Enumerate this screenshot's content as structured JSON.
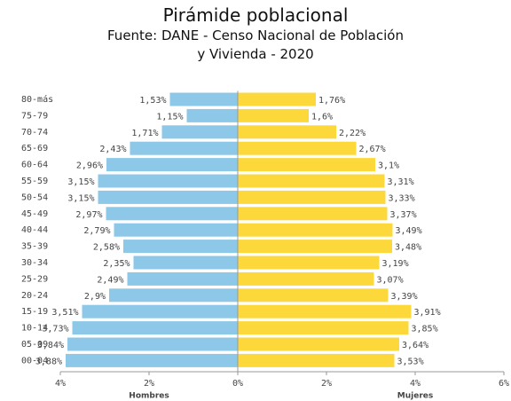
{
  "chart_data": {
    "type": "population-pyramid",
    "title": "Pirámide poblacional",
    "subtitle": "Fuente: DANE - Censo Nacional de Población y Vivienda - 2020",
    "categories": [
      "80-más",
      "75-79",
      "70-74",
      "65-69",
      "60-64",
      "55-59",
      "50-54",
      "45-49",
      "40-44",
      "35-39",
      "30-34",
      "25-29",
      "20-24",
      "15-19",
      "10-14",
      "05-09",
      "00-04"
    ],
    "series": [
      {
        "name": "Hombres",
        "color": "#8dc8e8",
        "values": [
          1.53,
          1.15,
          1.71,
          2.43,
          2.96,
          3.15,
          3.15,
          2.97,
          2.79,
          2.58,
          2.35,
          2.49,
          2.9,
          3.51,
          3.73,
          3.84,
          3.88
        ],
        "value_labels": [
          "1,53%",
          "1,15%",
          "1,71%",
          "2,43%",
          "2,96%",
          "3,15%",
          "3,15%",
          "2,97%",
          "2,79%",
          "2,58%",
          "2,35%",
          "2,49%",
          "2,9%",
          "3,51%",
          "3,73%",
          "3,84%",
          "3,88%"
        ]
      },
      {
        "name": "Mujeres",
        "color": "#fdd83a",
        "values": [
          1.76,
          1.6,
          2.22,
          2.67,
          3.1,
          3.31,
          3.33,
          3.37,
          3.49,
          3.48,
          3.19,
          3.07,
          3.39,
          3.91,
          3.85,
          3.64,
          3.53
        ],
        "value_labels": [
          "1,76%",
          "1,6%",
          "2,22%",
          "2,67%",
          "3,1%",
          "3,31%",
          "3,33%",
          "3,37%",
          "3,49%",
          "3,48%",
          "3,19%",
          "3,07%",
          "3,39%",
          "3,91%",
          "3,85%",
          "3,64%",
          "3,53%"
        ]
      }
    ],
    "xlim": [
      -4,
      6
    ],
    "xticks": [
      {
        "value": -4,
        "label": "4%"
      },
      {
        "value": -2,
        "label": "2%"
      },
      {
        "value": 0,
        "label": "0%"
      },
      {
        "value": 2,
        "label": "2%"
      },
      {
        "value": 4,
        "label": "4%"
      },
      {
        "value": 6,
        "label": "6%"
      }
    ]
  }
}
